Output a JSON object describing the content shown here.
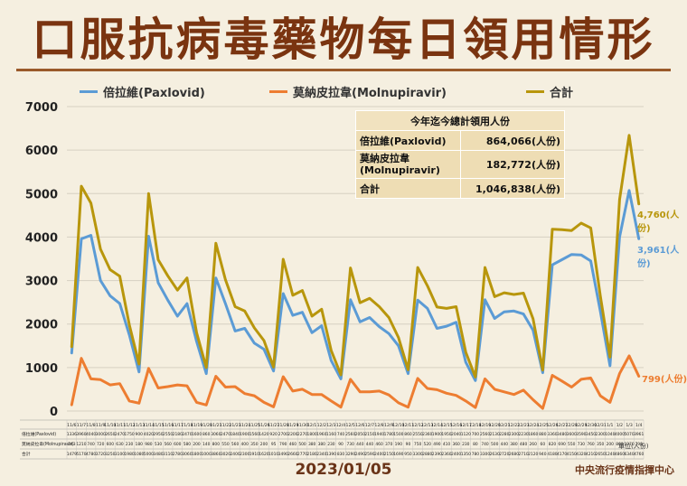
{
  "title": "口服抗病毒藥物每日領用情形",
  "date": "2023/01/05",
  "source": "中央流行疫情指揮中心",
  "unit_note": "單位(人份)",
  "legend": {
    "paxlovid": "倍拉維(Paxlovid)",
    "molnupiravir": "莫納皮拉韋(Molnupiravir)",
    "total": "合計"
  },
  "colors": {
    "paxlovid": "#5b9bd5",
    "molnupiravir": "#ed7d31",
    "total": "#b8960c",
    "title": "#7a3410"
  },
  "summary": {
    "header": "今年迄今總計領用人份",
    "rows": [
      {
        "label": "倍拉維(Paxlovid)",
        "value": "864,066(人份)"
      },
      {
        "label": "莫納皮拉韋\n(Molnupiravir)",
        "value": "182,772(人份)"
      },
      {
        "label": "合計",
        "value": "1,046,838(人份)"
      }
    ]
  },
  "end_labels": {
    "total": "4,760(人份)",
    "paxlovid": "3,961(人份)",
    "molnupiravir": "799(人份)"
  },
  "table_row_labels": [
    "倍拉維(Paxlovid)",
    "莫納皮拉韋(Molnupiravir)",
    "合計"
  ],
  "chart_data": {
    "type": "line",
    "ylim": [
      0,
      7000
    ],
    "yticks": [
      0,
      1000,
      2000,
      3000,
      4000,
      5000,
      6000,
      7000
    ],
    "grid": true,
    "legend_position": "top",
    "categories": [
      "11/6",
      "11/7",
      "11/8",
      "11/9",
      "11/10",
      "11/11",
      "11/12",
      "11/13",
      "11/14",
      "11/15",
      "11/16",
      "11/17",
      "11/18",
      "11/19",
      "11/20",
      "11/21",
      "11/22",
      "11/23",
      "11/24",
      "11/25",
      "11/26",
      "11/27",
      "11/28",
      "11/29",
      "11/30",
      "12/1",
      "12/2",
      "12/3",
      "12/4",
      "12/5",
      "12/6",
      "12/7",
      "12/8",
      "12/9",
      "12/10",
      "12/11",
      "12/12",
      "12/13",
      "12/14",
      "12/15",
      "12/16",
      "12/17",
      "12/18",
      "12/19",
      "12/20",
      "12/21",
      "12/22",
      "12/23",
      "12/24",
      "12/25",
      "12/26",
      "12/27",
      "12/28",
      "12/29",
      "12/30",
      "12/31",
      "1/1",
      "1/2",
      "1/3",
      "1/4"
    ],
    "series": [
      {
        "name": "倍拉維(Paxlovid)",
        "key": "paxlovid",
        "values": [
          1336,
          3960,
          4040,
          3000,
          2650,
          2470,
          1750,
          900,
          4020,
          2950,
          2550,
          2180,
          2470,
          1600,
          860,
          3060,
          2470,
          1840,
          1900,
          1560,
          1420,
          920,
          2700,
          2200,
          2270,
          1800,
          1960,
          1160,
          740,
          2560,
          2050,
          2150,
          1940,
          1780,
          1500,
          860,
          2550,
          2360,
          1900,
          1950,
          2040,
          1120,
          700,
          2560,
          2130,
          2280,
          2300,
          2230,
          1860,
          880,
          3360,
          3480,
          3600,
          3590,
          3450,
          2300,
          1040,
          4000,
          5070,
          3961
        ]
      },
      {
        "name": "莫納皮拉韋(Molnupiravir)",
        "key": "molnupiravir",
        "values": [
          143,
          1210,
          740,
          720,
          600,
          630,
          230,
          180,
          980,
          530,
          560,
          600,
          580,
          200,
          140,
          800,
          550,
          560,
          400,
          350,
          200,
          95,
          790,
          460,
          500,
          380,
          380,
          230,
          90,
          730,
          440,
          440,
          460,
          370,
          190,
          90,
          750,
          520,
          490,
          410,
          360,
          230,
          80,
          740,
          500,
          440,
          380,
          480,
          260,
          60,
          820,
          690,
          550,
          730,
          760,
          350,
          200,
          860,
          1270,
          799
        ]
      },
      {
        "name": "合計",
        "key": "total",
        "values": [
          1479,
          5170,
          4780,
          3720,
          3250,
          3100,
          1980,
          1080,
          5000,
          3480,
          3110,
          2780,
          3060,
          1800,
          1000,
          3860,
          3020,
          2400,
          2300,
          1910,
          1620,
          1010,
          3490,
          2660,
          2770,
          2180,
          2340,
          1390,
          830,
          3290,
          2490,
          2590,
          2400,
          2150,
          1690,
          950,
          3300,
          2880,
          2390,
          2360,
          2400,
          1350,
          780,
          3300,
          2630,
          2720,
          2680,
          2710,
          2120,
          940,
          4180,
          4170,
          4150,
          4320,
          4210,
          2650,
          1240,
          4860,
          6340,
          4760
        ]
      }
    ]
  }
}
